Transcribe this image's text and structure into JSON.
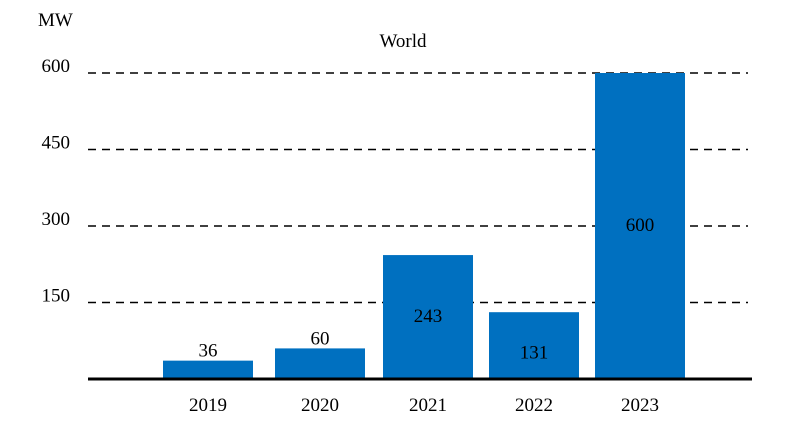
{
  "chart_data": {
    "type": "bar",
    "title": "World",
    "unit_label": "MW",
    "categories": [
      "2019",
      "2020",
      "2021",
      "2022",
      "2023"
    ],
    "values": [
      36,
      60,
      243,
      131,
      600
    ],
    "data_labels": [
      "36",
      "60",
      "243",
      "131",
      "600"
    ],
    "y_ticks": [
      150,
      300,
      450,
      600
    ],
    "ylim": [
      0,
      600
    ],
    "bar_color": "#0070C0",
    "grid": "dashed horizontal",
    "legend": "none"
  }
}
